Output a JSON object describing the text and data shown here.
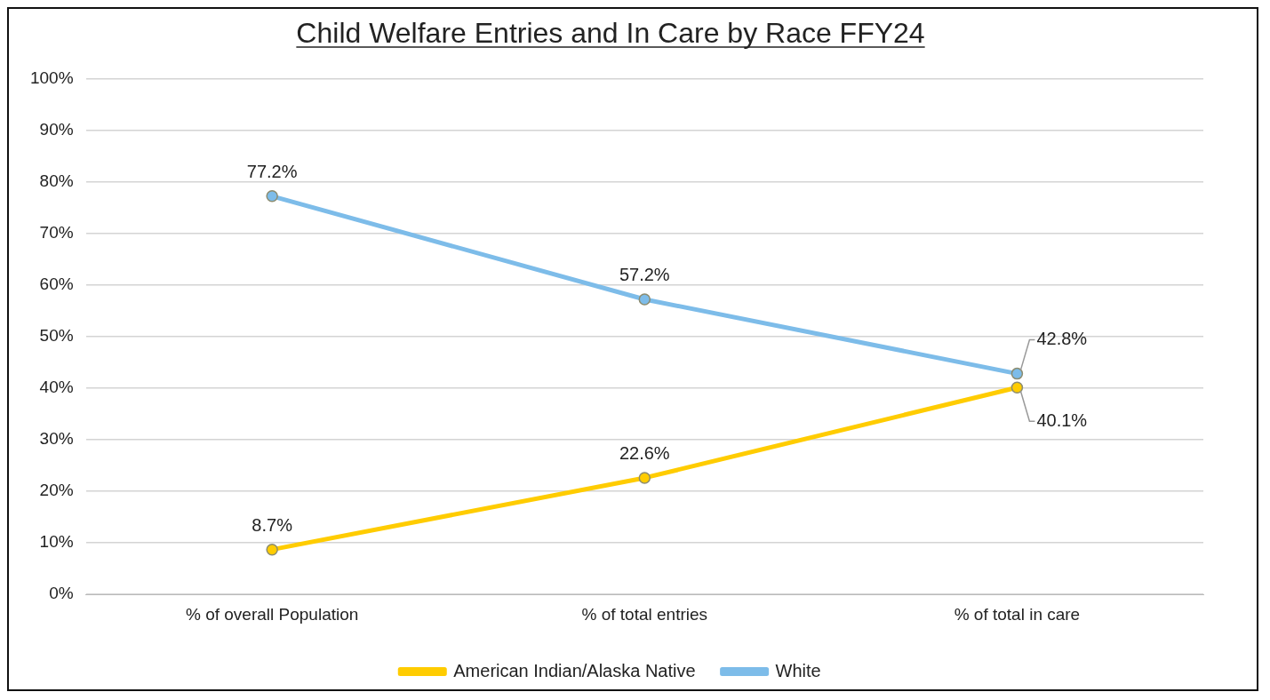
{
  "chart_data": {
    "type": "line",
    "title": "Child Welfare Entries and In Care by Race FFY24",
    "categories": [
      "% of overall Population",
      "% of total entries",
      "% of total in care"
    ],
    "series": [
      {
        "name": "American Indian/Alaska Native",
        "color": "#ffcc00",
        "values": [
          8.7,
          22.6,
          40.1
        ],
        "value_labels": [
          "8.7%",
          "22.6%",
          "40.1%"
        ]
      },
      {
        "name": "White",
        "color": "#7dbce9",
        "values": [
          77.2,
          57.2,
          42.8
        ],
        "value_labels": [
          "77.2%",
          "57.2%",
          "42.8%"
        ]
      }
    ],
    "ylim": [
      0,
      100
    ],
    "yticks": [
      {
        "value": 0,
        "label": "0%"
      },
      {
        "value": 10,
        "label": "10%"
      },
      {
        "value": 20,
        "label": "20%"
      },
      {
        "value": 30,
        "label": "30%"
      },
      {
        "value": 40,
        "label": "40%"
      },
      {
        "value": 50,
        "label": "50%"
      },
      {
        "value": 60,
        "label": "60%"
      },
      {
        "value": 70,
        "label": "70%"
      },
      {
        "value": 80,
        "label": "80%"
      },
      {
        "value": 90,
        "label": "90%"
      },
      {
        "value": 100,
        "label": "100%"
      }
    ],
    "grid": "y",
    "legend": "bottom",
    "marker": "circle",
    "line_style": "solid"
  }
}
